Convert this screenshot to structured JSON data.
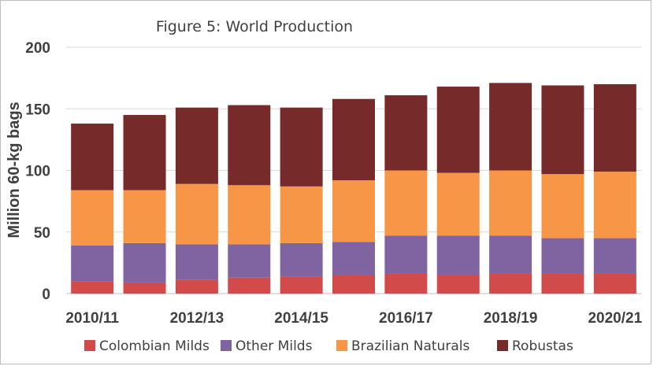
{
  "chart_data": {
    "type": "bar",
    "stacked": true,
    "title": "Figure 5: World Production",
    "ylabel": "Million 60-kg bags",
    "xlabel": "",
    "ylim": [
      0,
      200
    ],
    "yticks": [
      0,
      50,
      100,
      150,
      200
    ],
    "grid": true,
    "legend_position": "bottom",
    "categories": [
      "2010/11",
      "2011/12",
      "2012/13",
      "2013/14",
      "2014/15",
      "2015/16",
      "2016/17",
      "2017/18",
      "2018/19",
      "2019/20",
      "2020/21"
    ],
    "x_tick_labels": [
      "2010/11",
      "2012/13",
      "2014/15",
      "2016/17",
      "2018/19",
      "2020/21"
    ],
    "series": [
      {
        "name": "Colombian Milds",
        "color": "#d14b4b",
        "values": [
          10,
          9,
          11,
          13,
          14,
          15,
          16,
          15,
          16,
          16,
          16
        ]
      },
      {
        "name": "Other Milds",
        "color": "#8064a2",
        "values": [
          29,
          32,
          29,
          27,
          27,
          27,
          31,
          32,
          31,
          29,
          29
        ]
      },
      {
        "name": "Brazilian Naturals",
        "color": "#f79646",
        "values": [
          45,
          43,
          49,
          48,
          46,
          50,
          53,
          51,
          53,
          52,
          54
        ]
      },
      {
        "name": "Robustas",
        "color": "#772a2a",
        "values": [
          54,
          61,
          62,
          65,
          64,
          66,
          61,
          70,
          71,
          72,
          71
        ]
      }
    ]
  }
}
